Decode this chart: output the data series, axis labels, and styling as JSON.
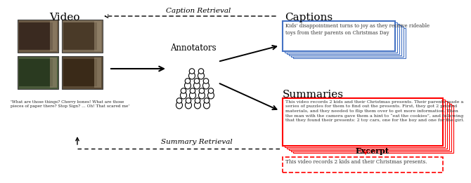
{
  "bg_color": "#ffffff",
  "video_label": "Video",
  "captions_label": "Captions",
  "summaries_label": "Summaries",
  "annotators_label": "Annotators",
  "excerpt_label": "Excerpt",
  "caption_retrieval_label": "Caption Retrieval",
  "summary_retrieval_label": "Summary Retrieval",
  "caption_text": "Kids' disappointment turns to joy as they receive rideable\ntoys from their parents on Christmas Day",
  "summary_text": "This video records 2 kids and their Christmas presents. Their parents made a\nseries of puzzles for them to find out the presents. First, they got 2 printed\nmaterials, and they needed to flip them over to get more information. Then\nthe man with the camera gave them a hint to “eat the cookies”, and following\nthat they found their presents: 2 toy cars, one for the boy and one for the girl.",
  "excerpt_text": "This video records 2 kids and their Christmas presents.",
  "transcript_text": "'What are those things? Cherry bones! What are those\npieces of paper there? Stop Sign? ... Oh! That scared me'",
  "blue_color": "#4472C4",
  "red_color": "#FF0000",
  "frame_colors": [
    "#6B5A45",
    "#7A6B55",
    "#4A5A3A",
    "#5A4A35"
  ],
  "frame_dark_colors": [
    "#3A2A20",
    "#4A3A28",
    "#2A3A20",
    "#3A2A18"
  ]
}
